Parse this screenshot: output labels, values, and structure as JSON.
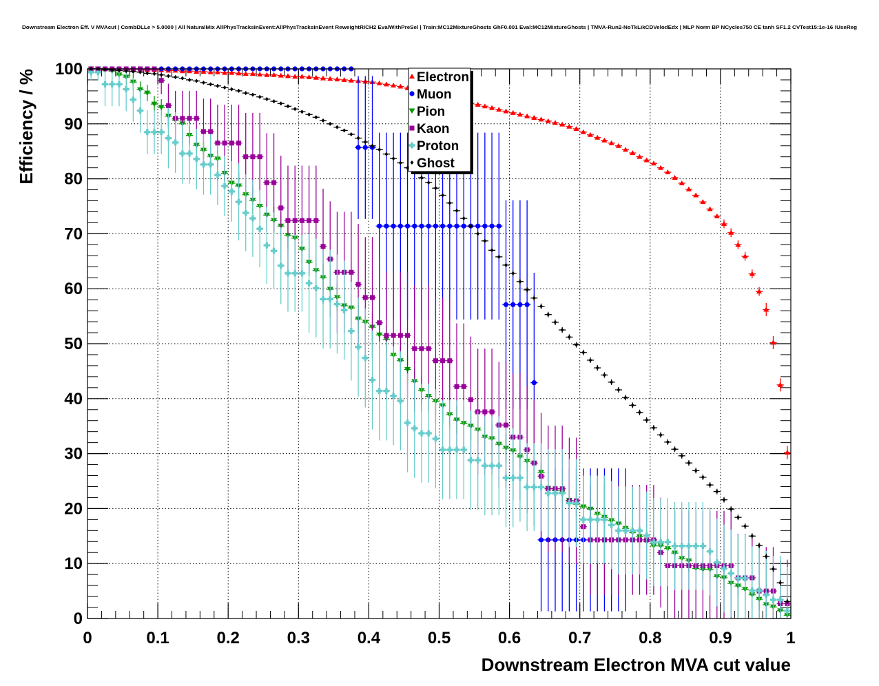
{
  "chart_data": {
    "type": "scatter",
    "title": "Downstream Electron Eff. V MVAcut | CombDLLe > 5.0000 | All NaturalMix AllPhysTracksInEvent:AllPhysTracksInEvent ReweightRICH2 EvalWithPreSel | Train:MC12MixtureGhosts GhF0.001 Eval:MC12MixtureGhosts | TMVA-Run2-NoTkLikCDVelodEdx | MLP Norm BP NCycles750 CE tanh SF1.2 CVTest15:1e-16 !UseReg",
    "xlabel": "Downstream Electron MVA cut value",
    "ylabel": "Efficiency / %",
    "xlim": [
      0,
      1
    ],
    "ylim": [
      0,
      100
    ],
    "grid": true,
    "legend_position": "top-center",
    "x_ticks": [
      "0",
      "0.1",
      "0.2",
      "0.3",
      "0.4",
      "0.5",
      "0.6",
      "0.7",
      "0.8",
      "0.9",
      "1"
    ],
    "y_ticks": [
      "0",
      "10",
      "20",
      "30",
      "40",
      "50",
      "60",
      "70",
      "80",
      "90",
      "100"
    ],
    "bin_width": 0.01,
    "x_start": 0.005,
    "series": [
      {
        "name": "Electron",
        "color": "#ff0000",
        "marker": "triangle-up",
        "err_runs": [
          [
            90,
            0.3
          ],
          [
            6,
            0.8
          ],
          [
            4,
            1.2
          ]
        ],
        "y": [
          100,
          100,
          100,
          100,
          100,
          99.9,
          99.9,
          99.9,
          99.8,
          99.8,
          99.8,
          99.7,
          99.7,
          99.6,
          99.6,
          99.5,
          99.5,
          99.4,
          99.4,
          99.3,
          99.3,
          99.2,
          99.1,
          99.1,
          99.0,
          98.9,
          98.9,
          98.8,
          98.7,
          98.6,
          98.6,
          98.5,
          98.4,
          98.3,
          98.2,
          98.1,
          98.0,
          97.9,
          97.8,
          97.7,
          97.6,
          97.4,
          97.2,
          97.0,
          96.8,
          96.5,
          96.2,
          95.9,
          95.6,
          95.2,
          94.9,
          94.6,
          94.3,
          94.0,
          93.7,
          93.5,
          93.2,
          92.9,
          92.6,
          92.3,
          92.0,
          91.7,
          91.4,
          91.1,
          90.8,
          90.5,
          90.2,
          89.9,
          89.5,
          89.1,
          88.5,
          88.0,
          87.5,
          87.0,
          86.5,
          86.0,
          85.3,
          84.7,
          84.0,
          83.4,
          82.8,
          82.0,
          81.2,
          80.2,
          79.2,
          78.1,
          77.0,
          75.8,
          74.5,
          73.2,
          71.8,
          70.2,
          68.0,
          65.9,
          62.7,
          59.5,
          56.2,
          50.2,
          42.5,
          30.2
        ]
      },
      {
        "name": "Muon",
        "color": "#0000ff",
        "marker": "circle",
        "err_runs": [
          [
            38,
            0
          ],
          [
            3,
            13
          ],
          [
            18,
            17
          ],
          [
            4,
            19
          ],
          [
            1,
            20
          ],
          [
            13,
            13
          ],
          [
            23,
            0
          ]
        ],
        "y": [
          100,
          100,
          100,
          100,
          100,
          100,
          100,
          100,
          100,
          100,
          100,
          100,
          100,
          100,
          100,
          100,
          100,
          100,
          100,
          100,
          100,
          100,
          100,
          100,
          100,
          100,
          100,
          100,
          100,
          100,
          100,
          100,
          100,
          100,
          100,
          100,
          100,
          100,
          85.7,
          85.7,
          85.7,
          71.4,
          71.4,
          71.4,
          71.4,
          71.4,
          71.4,
          71.4,
          71.4,
          71.4,
          71.4,
          71.4,
          71.4,
          71.4,
          71.4,
          71.4,
          71.4,
          71.4,
          71.4,
          57.1,
          57.1,
          57.1,
          57.1,
          42.9,
          14.3,
          14.3,
          14.3,
          14.3,
          14.3,
          14.3,
          14.3,
          14.3,
          14.3,
          14.3,
          14.3,
          14.3,
          14.3,
          null,
          null,
          null,
          null,
          null,
          null,
          null,
          null,
          null,
          null,
          null,
          null,
          null,
          null,
          null,
          null,
          null,
          null,
          null,
          null,
          null,
          null,
          null
        ]
      },
      {
        "name": "Pion",
        "color": "#009900",
        "marker": "triangle-down",
        "err_runs": [
          [
            5,
            0.5
          ],
          [
            15,
            1.5
          ],
          [
            40,
            2.5
          ],
          [
            40,
            2
          ]
        ],
        "y": [
          100,
          100,
          99.8,
          99.6,
          98.9,
          98.5,
          97.6,
          96.2,
          95.6,
          93.6,
          93.0,
          91.4,
          90.7,
          90.0,
          87.9,
          86.1,
          85.2,
          84.1,
          83.6,
          81.0,
          79.2,
          78.7,
          77.1,
          76.1,
          75.0,
          73.4,
          72.4,
          71.4,
          69.7,
          69.2,
          67.2,
          64.8,
          63.3,
          62.0,
          59.9,
          58.4,
          56.9,
          56.5,
          54.5,
          53.9,
          53.0,
          51.6,
          50.8,
          47.9,
          46.9,
          45.3,
          43.1,
          41.5,
          40.4,
          39.5,
          38.7,
          37.1,
          36.1,
          35.5,
          35.0,
          34.3,
          33.0,
          32.7,
          31.7,
          31.0,
          30.5,
          29.4,
          28.6,
          28.2,
          26.6,
          23.7,
          23.3,
          22.9,
          21.5,
          20.8,
          20.3,
          19.9,
          19.0,
          18.4,
          17.8,
          17.2,
          16.4,
          15.6,
          14.9,
          14.0,
          13.2,
          13.2,
          12.7,
          11.9,
          10.9,
          10.5,
          9.1,
          8.9,
          8.9,
          7.6,
          7.4,
          6.4,
          5.9,
          5.3,
          4.3,
          3.5,
          2.5,
          2.1,
          1.4,
          0.6
        ]
      },
      {
        "name": "Kaon",
        "color": "#990099",
        "marker": "square",
        "err_runs": [
          [
            10,
            0
          ],
          [
            1,
            2.5
          ],
          [
            1,
            4
          ],
          [
            4,
            5
          ],
          [
            2,
            6
          ],
          [
            4,
            7
          ],
          [
            3,
            8
          ],
          [
            2,
            9
          ],
          [
            1,
            9.5
          ],
          [
            5,
            10
          ],
          [
            2,
            10.5
          ],
          [
            6,
            11
          ],
          [
            29,
            11.5
          ],
          [
            22,
            10
          ],
          [
            8,
            8
          ]
        ],
        "y": [
          100,
          100,
          100,
          100,
          100,
          100,
          100,
          100,
          100,
          100,
          97.9,
          93.3,
          91.0,
          91.0,
          91.0,
          91.0,
          88.6,
          88.6,
          86.5,
          86.5,
          86.5,
          86.5,
          84.0,
          84.0,
          84.0,
          79.3,
          79.3,
          74.7,
          72.4,
          72.4,
          72.4,
          72.4,
          72.4,
          67.7,
          65.4,
          63.0,
          63.0,
          63.0,
          60.8,
          58.4,
          58.4,
          53.8,
          51.5,
          51.5,
          51.5,
          51.5,
          49.1,
          49.1,
          49.1,
          46.9,
          46.9,
          46.9,
          42.2,
          42.2,
          39.8,
          37.6,
          37.6,
          37.6,
          35.2,
          35.2,
          33.0,
          33.0,
          30.7,
          28.3,
          25.9,
          23.6,
          23.6,
          23.6,
          21.4,
          21.4,
          16.7,
          14.3,
          14.3,
          14.3,
          14.3,
          14.3,
          14.3,
          14.3,
          14.3,
          14.3,
          14.3,
          12.0,
          9.6,
          9.6,
          9.6,
          9.6,
          9.6,
          9.6,
          9.6,
          9.6,
          9.6,
          9.6,
          7.4,
          7.4,
          7.4,
          5.0,
          5.0,
          5.0,
          2.7,
          2.7
        ]
      },
      {
        "name": "Proton",
        "color": "#66cccc",
        "marker": "cross",
        "err_runs": [
          [
            2,
            1.5
          ],
          [
            9,
            4
          ],
          [
            10,
            5.5
          ],
          [
            10,
            7
          ],
          [
            30,
            9
          ],
          [
            39,
            8
          ]
        ],
        "y": [
          99.4,
          99.4,
          97.2,
          97.2,
          97.2,
          96.3,
          94.4,
          92.4,
          88.5,
          88.5,
          88.5,
          87.4,
          86.6,
          84.6,
          84.6,
          83.6,
          82.6,
          82.6,
          80.7,
          78.7,
          77.7,
          75.8,
          73.8,
          72.8,
          70.9,
          67.9,
          66.9,
          64.2,
          62.8,
          62.8,
          62.8,
          61.0,
          60.1,
          58.1,
          58.1,
          57.2,
          56.1,
          52.3,
          49.4,
          47.4,
          43.4,
          41.4,
          41.4,
          40.5,
          39.6,
          35.6,
          34.6,
          33.7,
          33.7,
          32.7,
          30.7,
          30.7,
          30.7,
          30.7,
          28.8,
          28.8,
          27.8,
          27.8,
          27.8,
          25.6,
          25.6,
          25.6,
          23.9,
          23.9,
          23.9,
          22.8,
          22.8,
          22.8,
          21.0,
          21.0,
          18.0,
          18.0,
          18.0,
          18.0,
          17.0,
          16.0,
          16.0,
          16.0,
          16.0,
          15.1,
          13.9,
          13.9,
          13.9,
          13.2,
          13.2,
          13.2,
          13.2,
          13.2,
          12.2,
          10.2,
          9.1,
          8.2,
          7.3,
          7.3,
          5.1,
          5.1,
          4.3,
          3.4,
          3.4,
          1.4
        ]
      },
      {
        "name": "Ghost",
        "color": "#000000",
        "marker": "diamond",
        "err_runs": [
          [
            60,
            0.3
          ],
          [
            40,
            0.5
          ]
        ],
        "y": [
          100,
          100,
          99.9,
          99.8,
          99.7,
          99.6,
          99.5,
          99.4,
          99.2,
          99.1,
          98.9,
          98.7,
          98.5,
          98.3,
          98.0,
          97.8,
          97.5,
          97.2,
          96.9,
          96.6,
          96.3,
          96.0,
          95.6,
          95.3,
          94.9,
          94.5,
          94.1,
          93.7,
          93.2,
          92.7,
          92.2,
          91.7,
          91.2,
          90.6,
          90.0,
          89.4,
          88.8,
          88.1,
          87.4,
          86.7,
          86.0,
          85.3,
          84.5,
          83.7,
          82.9,
          82.0,
          81.1,
          80.2,
          79.3,
          78.3,
          77.0,
          75.6,
          74.2,
          72.8,
          71.4,
          70.0,
          68.7,
          67.0,
          65.8,
          64.3,
          62.8,
          61.3,
          59.8,
          58.3,
          56.8,
          55.3,
          53.9,
          52.5,
          51.2,
          49.8,
          48.4,
          47.0,
          45.6,
          44.3,
          43.0,
          41.6,
          40.2,
          38.8,
          37.5,
          36.1,
          34.7,
          33.4,
          32.1,
          30.8,
          29.6,
          28.3,
          26.9,
          25.7,
          24.3,
          23.1,
          21.6,
          19.9,
          18.4,
          16.8,
          15.0,
          13.3,
          11.3,
          9.0,
          6.5,
          3.1
        ]
      }
    ]
  }
}
